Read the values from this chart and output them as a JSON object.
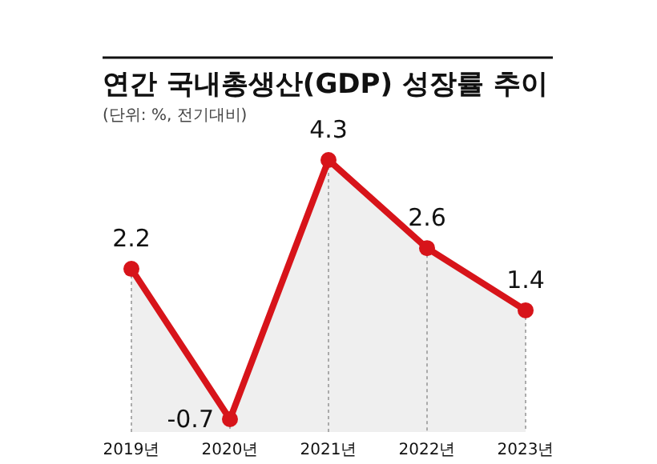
{
  "chart_data": {
    "type": "area",
    "title": "연간 국내총생산(GDP) 성장률 추이",
    "subtitle": "(단위: %, 전기대비)",
    "categories": [
      "2019년",
      "2020년",
      "2021년",
      "2022년",
      "2023년"
    ],
    "series": [
      {
        "color": "#d7141a",
        "values": [
          2.2,
          -0.7,
          4.3,
          2.6,
          1.4
        ]
      }
    ],
    "data_labels": true,
    "grid": "x",
    "marker": "circle"
  }
}
